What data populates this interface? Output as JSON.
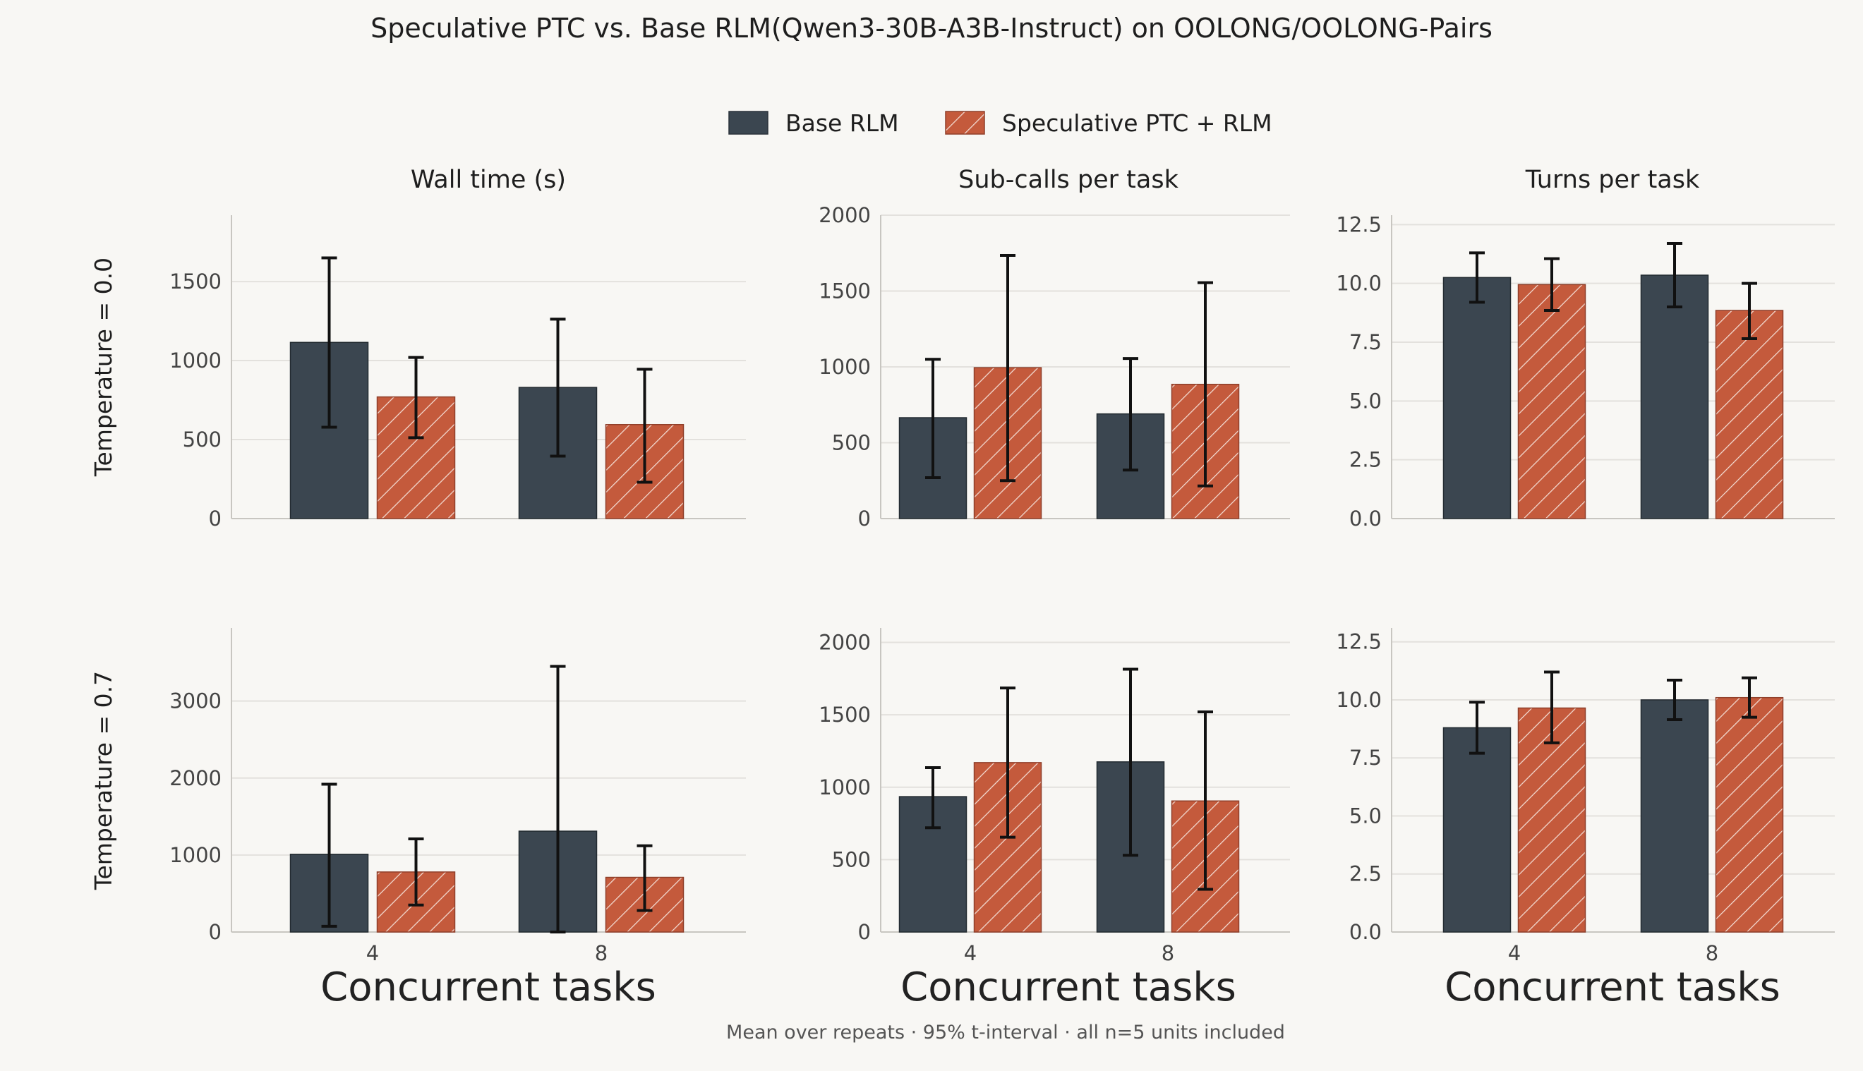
{
  "title": "Speculative PTC vs. Base RLM(Qwen3-30B-A3B-Instruct) on OOLONG/OOLONG-Pairs",
  "footnote": "Mean over repeats  ·  95% t-interval  ·  all n=5 units included",
  "legend": {
    "placement": "top-center",
    "entries": [
      {
        "label": "Base RLM",
        "color": "#3b4650",
        "pattern": "solid"
      },
      {
        "label": "Speculative PTC + RLM",
        "color": "#c45a3c",
        "pattern": "hatch"
      }
    ]
  },
  "row_labels": [
    "Temperature = 0.0",
    "Temperature = 0.7"
  ],
  "column_titles": [
    "Wall time (s)",
    "Sub-calls per task",
    "Turns per task"
  ],
  "xlabel": "Concurrent tasks",
  "chart_data": [
    {
      "type": "bar",
      "row": 0,
      "col": 0,
      "categories": [
        "4",
        "8"
      ],
      "ylim": [
        0,
        1920
      ],
      "yticks": [
        0,
        500,
        1000,
        1500
      ],
      "ytick_labels": [
        "0",
        "500",
        "1000",
        "1500"
      ],
      "grid": true,
      "series": [
        {
          "name": "Base RLM",
          "values": [
            1115,
            830
          ],
          "err_low": [
            578,
            395
          ],
          "err_high": [
            1650,
            1262
          ]
        },
        {
          "name": "Speculative PTC + RLM",
          "values": [
            770,
            595
          ],
          "err_low": [
            512,
            230
          ],
          "err_high": [
            1020,
            945
          ]
        }
      ]
    },
    {
      "type": "bar",
      "row": 0,
      "col": 1,
      "categories": [
        "4",
        "8"
      ],
      "ylim": [
        0,
        2000
      ],
      "yticks": [
        0,
        500,
        1000,
        1500,
        2000
      ],
      "ytick_labels": [
        "0",
        "500",
        "1000",
        "1500",
        "2000"
      ],
      "grid": true,
      "series": [
        {
          "name": "Base RLM",
          "values": [
            665,
            690
          ],
          "err_low": [
            270,
            320
          ],
          "err_high": [
            1050,
            1055
          ]
        },
        {
          "name": "Speculative PTC + RLM",
          "values": [
            995,
            885
          ],
          "err_low": [
            250,
            215
          ],
          "err_high": [
            1735,
            1555
          ]
        }
      ]
    },
    {
      "type": "bar",
      "row": 0,
      "col": 2,
      "categories": [
        "4",
        "8"
      ],
      "ylim": [
        0,
        12.9
      ],
      "yticks": [
        0,
        2.5,
        5,
        7.5,
        10,
        12.5
      ],
      "ytick_labels": [
        "0.0",
        "2.5",
        "5.0",
        "7.5",
        "10.0",
        "12.5"
      ],
      "grid": true,
      "series": [
        {
          "name": "Base RLM",
          "values": [
            10.25,
            10.35
          ],
          "err_low": [
            9.2,
            9.0
          ],
          "err_high": [
            11.3,
            11.7
          ]
        },
        {
          "name": "Speculative PTC + RLM",
          "values": [
            9.95,
            8.85
          ],
          "err_low": [
            8.85,
            7.65
          ],
          "err_high": [
            11.05,
            10.0
          ]
        }
      ]
    },
    {
      "type": "bar",
      "row": 1,
      "col": 0,
      "categories": [
        "4",
        "8"
      ],
      "ylim": [
        0,
        3950
      ],
      "yticks": [
        0,
        1000,
        2000,
        3000
      ],
      "ytick_labels": [
        "0",
        "1000",
        "2000",
        "3000"
      ],
      "grid": true,
      "series": [
        {
          "name": "Base RLM",
          "values": [
            1010,
            1310
          ],
          "err_low": [
            75,
            0
          ],
          "err_high": [
            1920,
            3450
          ]
        },
        {
          "name": "Speculative PTC + RLM",
          "values": [
            780,
            710
          ],
          "err_low": [
            350,
            280
          ],
          "err_high": [
            1210,
            1120
          ]
        }
      ]
    },
    {
      "type": "bar",
      "row": 1,
      "col": 1,
      "categories": [
        "4",
        "8"
      ],
      "ylim": [
        0,
        2100
      ],
      "yticks": [
        0,
        500,
        1000,
        1500,
        2000
      ],
      "ytick_labels": [
        "0",
        "500",
        "1000",
        "1500",
        "2000"
      ],
      "grid": true,
      "series": [
        {
          "name": "Base RLM",
          "values": [
            935,
            1175
          ],
          "err_low": [
            720,
            530
          ],
          "err_high": [
            1135,
            1815
          ]
        },
        {
          "name": "Speculative PTC + RLM",
          "values": [
            1170,
            905
          ],
          "err_low": [
            655,
            295
          ],
          "err_high": [
            1685,
            1520
          ]
        }
      ]
    },
    {
      "type": "bar",
      "row": 1,
      "col": 2,
      "categories": [
        "4",
        "8"
      ],
      "ylim": [
        0,
        13.1
      ],
      "yticks": [
        0,
        2.5,
        5,
        7.5,
        10,
        12.5
      ],
      "ytick_labels": [
        "0.0",
        "2.5",
        "5.0",
        "7.5",
        "10.0",
        "12.5"
      ],
      "grid": true,
      "series": [
        {
          "name": "Base RLM",
          "values": [
            8.8,
            10.0
          ],
          "err_low": [
            7.7,
            9.15
          ],
          "err_high": [
            9.9,
            10.85
          ]
        },
        {
          "name": "Speculative PTC + RLM",
          "values": [
            9.65,
            10.1
          ],
          "err_low": [
            8.15,
            9.25
          ],
          "err_high": [
            11.2,
            10.95
          ]
        }
      ]
    }
  ]
}
